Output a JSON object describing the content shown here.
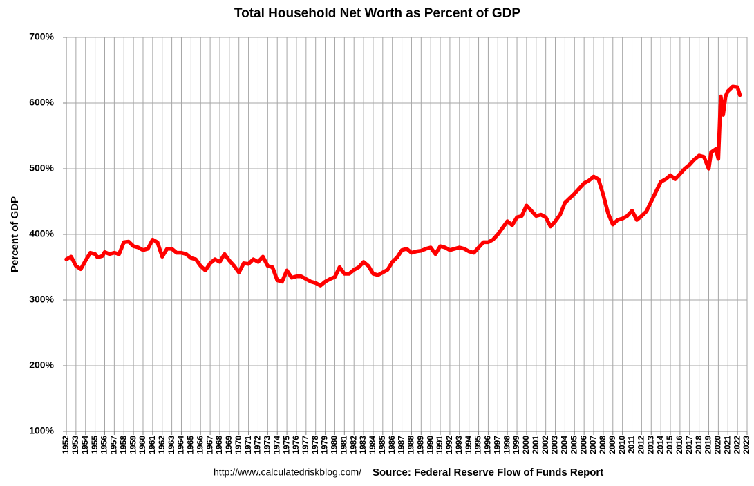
{
  "chart_data": {
    "type": "line",
    "title": "Total Household Net Worth as Percent of GDP",
    "y_label": "Percent of GDP",
    "url": "http://www.calculatedriskblog.com/",
    "source": "Source: Federal Reserve Flow of Funds Report",
    "grid": true,
    "xlim": [
      1952,
      2023
    ],
    "xticks": [
      1952,
      1953,
      1954,
      1955,
      1956,
      1957,
      1958,
      1959,
      1960,
      1961,
      1962,
      1963,
      1964,
      1965,
      1966,
      1967,
      1968,
      1969,
      1970,
      1971,
      1972,
      1973,
      1974,
      1975,
      1976,
      1977,
      1978,
      1979,
      1980,
      1981,
      1982,
      1983,
      1984,
      1985,
      1986,
      1987,
      1988,
      1989,
      1990,
      1991,
      1992,
      1993,
      1994,
      1995,
      1996,
      1997,
      1998,
      1999,
      2000,
      2001,
      2002,
      2003,
      2004,
      2005,
      2006,
      2007,
      2008,
      2009,
      2010,
      2011,
      2012,
      2013,
      2014,
      2015,
      2016,
      2017,
      2018,
      2019,
      2020,
      2021,
      2022,
      2023
    ],
    "ylim": [
      100,
      700
    ],
    "yticks": [
      {
        "value": 100,
        "label": "100%"
      },
      {
        "value": 200,
        "label": "200%"
      },
      {
        "value": 300,
        "label": "300%"
      },
      {
        "value": 400,
        "label": "400%"
      },
      {
        "value": 500,
        "label": "500%"
      },
      {
        "value": 600,
        "label": "600%"
      },
      {
        "value": 700,
        "label": "700%"
      }
    ],
    "x": [
      1952,
      1952.5,
      1953,
      1953.5,
      1954,
      1954.5,
      1955,
      1955.25,
      1955.75,
      1956,
      1956.5,
      1957,
      1957.5,
      1958,
      1958.5,
      1959,
      1959.5,
      1960,
      1960.5,
      1961,
      1961.5,
      1962,
      1962.5,
      1963,
      1963.5,
      1964,
      1964.5,
      1965,
      1965.5,
      1966,
      1966.5,
      1967,
      1967.5,
      1968,
      1968.5,
      1969,
      1969.5,
      1970,
      1970.5,
      1971,
      1971.5,
      1972,
      1972.5,
      1973,
      1973.5,
      1974,
      1974.5,
      1975,
      1975.5,
      1976,
      1976.5,
      1977,
      1977.5,
      1978,
      1978.5,
      1979,
      1979.5,
      1980,
      1980.5,
      1981,
      1981.5,
      1982,
      1982.5,
      1983,
      1983.5,
      1984,
      1984.5,
      1985,
      1985.5,
      1986,
      1986.5,
      1987,
      1987.5,
      1988,
      1988.5,
      1989,
      1989.5,
      1990,
      1990.5,
      1991,
      1991.5,
      1992,
      1992.5,
      1993,
      1993.5,
      1994,
      1994.5,
      1995,
      1995.5,
      1996,
      1996.5,
      1997,
      1997.5,
      1998,
      1998.5,
      1999,
      1999.5,
      2000,
      2000.5,
      2001,
      2001.5,
      2002,
      2002.5,
      2003,
      2003.5,
      2004,
      2004.5,
      2005,
      2005.5,
      2006,
      2006.5,
      2007,
      2007.5,
      2008,
      2008.5,
      2009,
      2009.5,
      2010,
      2010.5,
      2011,
      2011.5,
      2012,
      2012.5,
      2013,
      2013.5,
      2014,
      2014.5,
      2015,
      2015.5,
      2016,
      2016.5,
      2017,
      2017.5,
      2018,
      2018.5,
      2019,
      2019.25,
      2019.75,
      2020,
      2020.25,
      2020.5,
      2020.75,
      2021,
      2021.5,
      2022,
      2022.25
    ],
    "series": [
      {
        "name": "Household Net Worth as Percent of GDP",
        "color": "#ff0000",
        "values": [
          362,
          366,
          352,
          347,
          360,
          372,
          370,
          365,
          367,
          373,
          370,
          372,
          370,
          388,
          389,
          382,
          380,
          376,
          378,
          392,
          388,
          366,
          378,
          378,
          372,
          372,
          370,
          364,
          362,
          352,
          345,
          356,
          362,
          358,
          370,
          360,
          352,
          342,
          356,
          355,
          362,
          358,
          366,
          352,
          350,
          330,
          328,
          345,
          334,
          336,
          336,
          332,
          328,
          326,
          322,
          328,
          332,
          335,
          350,
          340,
          340,
          346,
          350,
          358,
          352,
          340,
          338,
          342,
          346,
          358,
          365,
          376,
          378,
          372,
          374,
          375,
          378,
          380,
          370,
          382,
          380,
          376,
          378,
          380,
          378,
          374,
          372,
          380,
          388,
          388,
          392,
          400,
          410,
          420,
          414,
          426,
          428,
          444,
          436,
          428,
          430,
          426,
          412,
          420,
          430,
          448,
          455,
          462,
          470,
          478,
          482,
          488,
          484,
          460,
          432,
          415,
          422,
          424,
          428,
          436,
          422,
          428,
          435,
          450,
          465,
          480,
          484,
          490,
          484,
          492,
          500,
          506,
          514,
          520,
          518,
          500,
          525,
          530,
          515,
          610,
          582,
          610,
          618,
          625,
          624,
          612
        ]
      }
    ]
  }
}
